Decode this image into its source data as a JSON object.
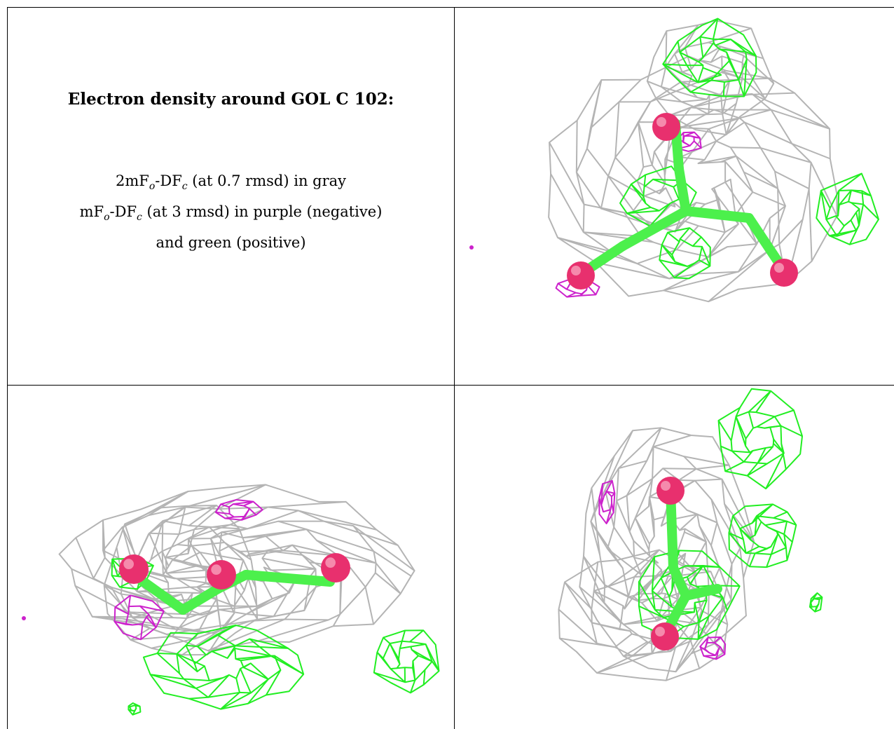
{
  "caption": {
    "title": "Electron density around GOL C 102:",
    "line1": {
      "pre": "2mF",
      "sub1": "o",
      "mid": "-DF",
      "sub2": "c",
      "post": " (at 0.7 rmsd) in gray"
    },
    "line2": {
      "pre": "mF",
      "sub1": "o",
      "mid": "-DF",
      "sub2": "c",
      "post": " (at 3 rmsd) in purple (negative)"
    },
    "line3": "and green (positive)"
  },
  "colors": {
    "map_2fofc": "#b4b4b4",
    "map_fofc_negative": "#cc22cc",
    "map_fofc_positive": "#22ee22",
    "ligand_carbon": "#4cf04c",
    "ligand_oxygen": "#e8306e"
  },
  "panels": [
    {
      "name": "view-1",
      "ligand": "GOL C 102"
    },
    {
      "name": "view-2",
      "ligand": "GOL C 102"
    },
    {
      "name": "view-3",
      "ligand": "GOL C 102"
    }
  ]
}
